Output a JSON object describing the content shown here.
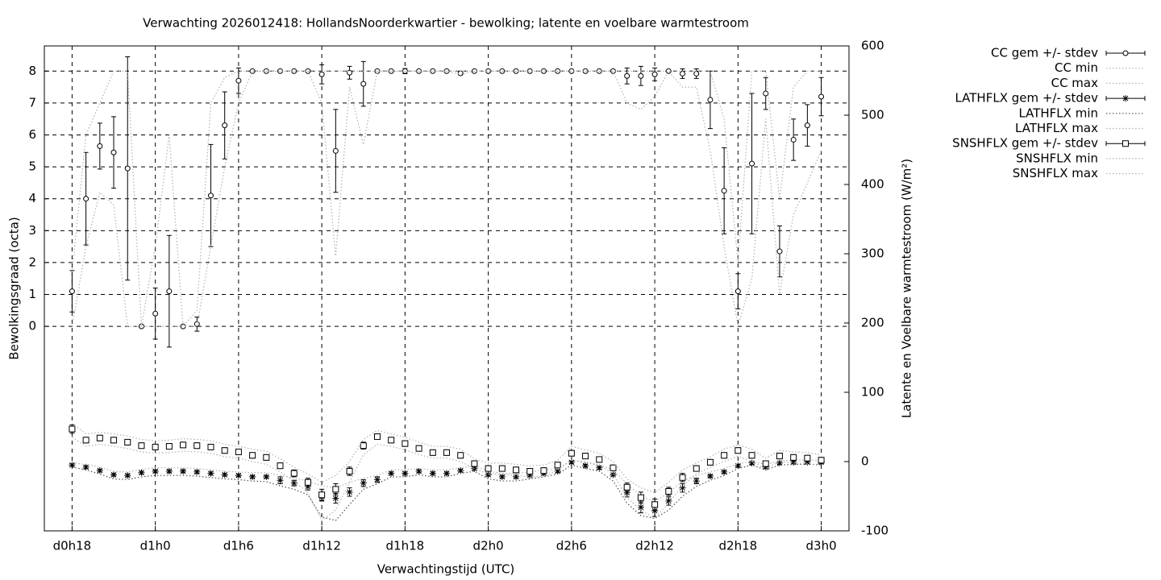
{
  "chart_data": {
    "type": "errorbar",
    "title": "Verwachting 2026012418: HollandsNoorderkwartier - bewolking; latente en voelbare warmtestroom",
    "xlabel": "Verwachtingstijd (UTC)",
    "ylabel": "Bewolkingsgraad (octa)",
    "y2label": "Latente en Voelbare warmtestroom (W/m²)",
    "x": [
      18,
      19,
      20,
      21,
      22,
      23,
      24,
      25,
      26,
      27,
      28,
      29,
      30,
      31,
      32,
      33,
      34,
      35,
      36,
      37,
      38,
      39,
      40,
      41,
      42,
      43,
      44,
      45,
      46,
      47,
      48,
      49,
      50,
      51,
      52,
      53,
      54,
      55,
      56,
      57,
      58,
      59,
      60,
      61,
      62,
      63,
      64,
      65,
      66,
      67,
      68,
      69,
      70,
      71,
      72
    ],
    "xlim": [
      16,
      74
    ],
    "xticks": [
      {
        "value": 18,
        "label": "d0h18"
      },
      {
        "value": 24,
        "label": "d1h0"
      },
      {
        "value": 30,
        "label": "d1h6"
      },
      {
        "value": 36,
        "label": "d1h12"
      },
      {
        "value": 42,
        "label": "d1h18"
      },
      {
        "value": 48,
        "label": "d2h0"
      },
      {
        "value": 54,
        "label": "d2h6"
      },
      {
        "value": 60,
        "label": "d2h12"
      },
      {
        "value": 66,
        "label": "d2h18"
      },
      {
        "value": 72,
        "label": "d3h0"
      }
    ],
    "ylim": [
      -6.41,
      8.79
    ],
    "yticks": [
      0,
      1,
      2,
      3,
      4,
      5,
      6,
      7,
      8
    ],
    "y2lim": [
      -100,
      600
    ],
    "y2ticks": [
      -100,
      0,
      100,
      200,
      300,
      400,
      500,
      600
    ],
    "grid": true,
    "legend": "outside-right",
    "series": [
      {
        "name": "CC gem +/- stdev",
        "color": "#000000",
        "marker": "circle",
        "values": [
          1.1,
          4.0,
          5.65,
          5.45,
          4.95,
          0,
          0.4,
          1.1,
          0,
          0.07,
          4.1,
          6.3,
          7.7,
          8,
          8,
          8,
          8,
          8,
          7.9,
          5.5,
          7.95,
          7.6,
          8,
          8,
          8,
          8,
          8,
          8,
          7.93,
          8,
          8,
          8,
          8,
          8,
          8,
          8,
          8,
          8,
          8,
          8,
          7.85,
          7.85,
          7.9,
          8,
          7.92,
          7.92,
          7.1,
          4.25,
          1.1,
          5.1,
          7.3,
          2.35,
          5.85,
          6.3,
          7.2
        ],
        "errors": [
          0.65,
          1.45,
          0.72,
          1.12,
          3.5,
          0,
          0.8,
          1.75,
          0.03,
          0.22,
          1.6,
          1.05,
          0.4,
          0,
          0,
          0,
          0,
          0,
          0.3,
          1.3,
          0.2,
          0.7,
          0,
          0,
          0.08,
          0,
          0,
          0,
          0.05,
          0,
          0,
          0,
          0,
          0,
          0,
          0,
          0,
          0,
          0,
          0,
          0.25,
          0.3,
          0.2,
          0,
          0.15,
          0.15,
          0.9,
          1.35,
          0.55,
          2.2,
          0.5,
          0.8,
          0.65,
          0.65,
          0.6
        ]
      },
      {
        "name": "CC min",
        "color": "#b0b0b0",
        "line": "dotted",
        "values": [
          0,
          2.5,
          4.2,
          3.8,
          0,
          0,
          0,
          0,
          0,
          0,
          2.5,
          5,
          7,
          8,
          8,
          8,
          8,
          8,
          7,
          2.2,
          7.5,
          5.7,
          8,
          8,
          8,
          8,
          8,
          8,
          7.9,
          8,
          8,
          8,
          8,
          8,
          8,
          8,
          8,
          8,
          8,
          8,
          7,
          6.8,
          7.2,
          8,
          7.5,
          7.5,
          5.5,
          2.5,
          0,
          1.5,
          6.5,
          1,
          3.5,
          4.5,
          5.5
        ]
      },
      {
        "name": "CC max",
        "color": "#b0b0b0",
        "line": "dotted",
        "values": [
          1.7,
          6,
          7,
          8,
          8,
          0,
          2.5,
          6,
          0,
          0.5,
          7,
          7.8,
          8,
          8,
          8,
          8,
          8,
          8,
          8,
          8,
          8,
          8,
          8,
          8,
          8,
          8,
          8,
          8,
          8,
          8,
          8,
          8,
          8,
          8,
          8,
          8,
          8,
          8,
          8,
          8,
          8,
          8,
          8,
          8,
          8,
          8,
          8,
          6.5,
          2,
          8,
          8,
          4,
          7.5,
          8,
          8
        ]
      },
      {
        "name": "LATHFLX gem +/- stdev",
        "color": "#000000",
        "marker": "star",
        "axis": "y2",
        "values": [
          -5,
          -8,
          -13,
          -19,
          -20,
          -16,
          -14,
          -14,
          -14,
          -15,
          -17,
          -19,
          -20,
          -22,
          -22,
          -27,
          -31,
          -36,
          -51,
          -53,
          -44,
          -31,
          -26,
          -17,
          -17,
          -14,
          -17,
          -17,
          -13,
          -10,
          -19,
          -22,
          -22,
          -20,
          -17,
          -14,
          -1,
          -6,
          -9,
          -19,
          -45,
          -66,
          -71,
          -57,
          -38,
          -28,
          -21,
          -15,
          -6,
          -2,
          -8,
          -2,
          -1,
          -1,
          -1
        ],
        "errors": [
          2,
          2,
          2,
          2,
          2,
          2,
          2,
          2,
          2,
          2,
          2,
          2,
          2,
          2,
          2,
          5,
          4,
          5,
          6,
          7,
          6,
          5,
          4,
          2,
          2,
          2,
          2,
          2,
          2,
          2,
          2,
          2,
          2,
          2,
          2,
          2,
          2,
          2,
          2,
          2,
          6,
          8,
          8,
          6,
          6,
          4,
          2,
          2,
          2,
          2,
          2,
          2,
          2,
          2,
          2
        ]
      },
      {
        "name": "LATHFLX min",
        "color": "#505050",
        "line": "dotted",
        "axis": "y2",
        "values": [
          -8,
          -12,
          -18,
          -25,
          -26,
          -22,
          -20,
          -20,
          -20,
          -21,
          -23,
          -25,
          -26,
          -28,
          -29,
          -35,
          -40,
          -48,
          -80,
          -85,
          -62,
          -40,
          -32,
          -22,
          -22,
          -19,
          -22,
          -22,
          -17,
          -14,
          -25,
          -28,
          -28,
          -25,
          -22,
          -18,
          -5,
          -10,
          -14,
          -28,
          -60,
          -78,
          -82,
          -70,
          -50,
          -36,
          -27,
          -20,
          -10,
          -5,
          -12,
          -5,
          -4,
          -4,
          -4
        ]
      },
      {
        "name": "LATHFLX max",
        "color": "#b0b0b0",
        "line": "dotted",
        "axis": "y2",
        "values": [
          -2,
          -4,
          -8,
          -14,
          -15,
          -11,
          -9,
          -9,
          -9,
          -10,
          -12,
          -14,
          -15,
          -16,
          -16,
          -20,
          -24,
          -28,
          -35,
          -38,
          -30,
          -24,
          -20,
          -12,
          -12,
          -10,
          -12,
          -12,
          -9,
          -6,
          -14,
          -17,
          -17,
          -15,
          -12,
          -10,
          2,
          -2,
          -5,
          -12,
          -32,
          -50,
          -58,
          -45,
          -28,
          -20,
          -15,
          -10,
          -3,
          0,
          -4,
          1,
          2,
          2,
          2
        ]
      },
      {
        "name": "SNSHFLX gem +/- stdev",
        "color": "#000000",
        "marker": "square",
        "axis": "y2",
        "values": [
          47,
          31,
          34,
          31,
          28,
          23,
          21,
          22,
          24,
          23,
          21,
          16,
          14,
          9,
          6,
          -6,
          -17,
          -30,
          -48,
          -40,
          -14,
          23,
          36,
          31,
          26,
          19,
          13,
          13,
          9,
          -3,
          -10,
          -10,
          -12,
          -14,
          -13,
          -5,
          12,
          8,
          3,
          -9,
          -37,
          -52,
          -62,
          -43,
          -23,
          -10,
          -1,
          9,
          16,
          9,
          -3,
          8,
          6,
          5,
          2
        ],
        "errors": [
          6,
          4,
          4,
          4,
          4,
          4,
          4,
          4,
          4,
          4,
          4,
          4,
          4,
          4,
          4,
          4,
          5,
          6,
          8,
          8,
          6,
          5,
          4,
          4,
          4,
          4,
          4,
          4,
          4,
          4,
          4,
          4,
          4,
          4,
          4,
          4,
          4,
          4,
          4,
          4,
          6,
          8,
          8,
          6,
          6,
          4,
          4,
          4,
          4,
          4,
          4,
          4,
          4,
          4,
          4
        ]
      },
      {
        "name": "SNSHFLX min",
        "color": "#b0b0b0",
        "line": "dotted",
        "axis": "y2",
        "values": [
          35,
          22,
          25,
          22,
          19,
          14,
          12,
          13,
          15,
          14,
          12,
          7,
          5,
          0,
          -4,
          -15,
          -28,
          -45,
          -85,
          -70,
          -30,
          10,
          25,
          22,
          17,
          10,
          5,
          5,
          0,
          -10,
          -18,
          -18,
          -20,
          -22,
          -21,
          -12,
          2,
          0,
          -5,
          -18,
          -52,
          -70,
          -82,
          -60,
          -35,
          -18,
          -8,
          0,
          8,
          0,
          -10,
          0,
          -2,
          -3,
          -6
        ]
      },
      {
        "name": "SNSHFLX max",
        "color": "#b0b0b0",
        "line": "dotted",
        "axis": "y2",
        "values": [
          55,
          40,
          42,
          40,
          37,
          32,
          30,
          31,
          33,
          32,
          30,
          25,
          22,
          18,
          15,
          4,
          -8,
          -18,
          -30,
          -20,
          0,
          32,
          45,
          40,
          35,
          28,
          22,
          22,
          18,
          4,
          -2,
          -2,
          -4,
          -6,
          -5,
          2,
          22,
          17,
          12,
          0,
          -25,
          -38,
          -45,
          -30,
          -12,
          -2,
          7,
          18,
          24,
          18,
          5,
          16,
          14,
          13,
          10
        ]
      }
    ]
  }
}
